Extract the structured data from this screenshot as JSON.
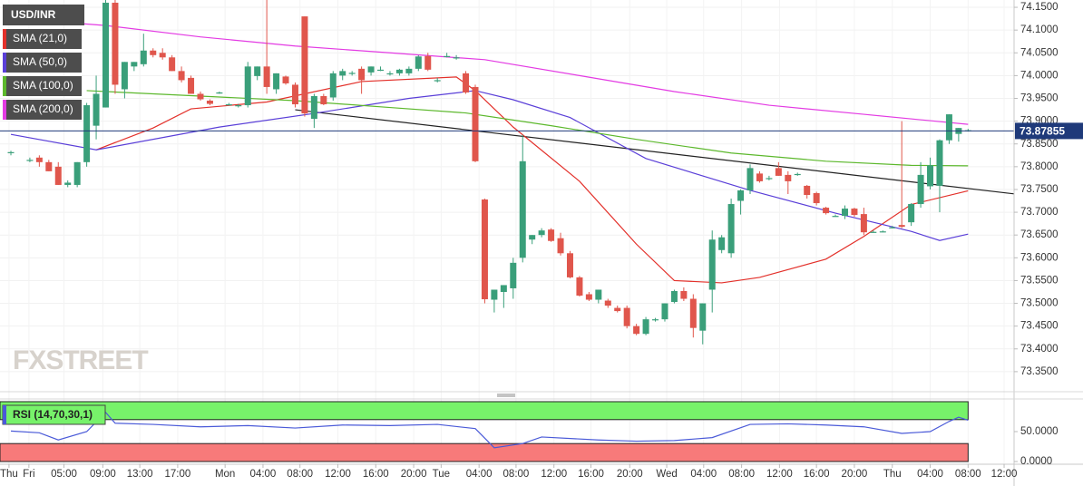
{
  "chart_data": {
    "type": "candlestick",
    "title": "USD/INR",
    "watermark": "FXSTREET",
    "up_color": "#3a9f7a",
    "down_color": "#e0564c",
    "grid": true,
    "xlim": [
      -1.15,
      105.85
    ],
    "ylim": [
      73.306,
      74.166
    ],
    "yticks": [
      {
        "value": 74.15,
        "label": "74.1500"
      },
      {
        "value": 74.1,
        "label": "74.1000"
      },
      {
        "value": 74.05,
        "label": "74.0500"
      },
      {
        "value": 74.0,
        "label": "74.0000"
      },
      {
        "value": 73.95,
        "label": "73.9500"
      },
      {
        "value": 73.9,
        "label": "73.9000"
      },
      {
        "value": 73.85,
        "label": "73.8500"
      },
      {
        "value": 73.8,
        "label": "73.8000"
      },
      {
        "value": 73.75,
        "label": "73.7500"
      },
      {
        "value": 73.7,
        "label": "73.7000"
      },
      {
        "value": 73.65,
        "label": "73.6500"
      },
      {
        "value": 73.6,
        "label": "73.6000"
      },
      {
        "value": 73.55,
        "label": "73.5500"
      },
      {
        "value": 73.5,
        "label": "73.5000"
      },
      {
        "value": 73.45,
        "label": "73.4500"
      },
      {
        "value": 73.4,
        "label": "73.4000"
      },
      {
        "value": 73.35,
        "label": "73.3500"
      }
    ],
    "xticks": [
      {
        "value": -0.2,
        "label": "Thu"
      },
      {
        "value": 1.9,
        "label": "Fri"
      },
      {
        "value": 5.6,
        "label": "05:00"
      },
      {
        "value": 9.7,
        "label": "09:00"
      },
      {
        "value": 13.6,
        "label": "13:00"
      },
      {
        "value": 17.6,
        "label": "17:00"
      },
      {
        "value": 22.6,
        "label": "Mon"
      },
      {
        "value": 26.6,
        "label": "04:00"
      },
      {
        "value": 30.5,
        "label": "08:00"
      },
      {
        "value": 34.5,
        "label": "12:00"
      },
      {
        "value": 38.5,
        "label": "16:00"
      },
      {
        "value": 42.5,
        "label": "20:00"
      },
      {
        "value": 45.4,
        "label": "Tue"
      },
      {
        "value": 49.4,
        "label": "04:00"
      },
      {
        "value": 53.3,
        "label": "08:00"
      },
      {
        "value": 57.3,
        "label": "12:00"
      },
      {
        "value": 61.2,
        "label": "16:00"
      },
      {
        "value": 65.3,
        "label": "20:00"
      },
      {
        "value": 69.2,
        "label": "Wed"
      },
      {
        "value": 73.1,
        "label": "04:00"
      },
      {
        "value": 77.1,
        "label": "08:00"
      },
      {
        "value": 81.1,
        "label": "12:00"
      },
      {
        "value": 85,
        "label": "16:00"
      },
      {
        "value": 89,
        "label": "20:00"
      },
      {
        "value": 93,
        "label": "Thu"
      },
      {
        "value": 97,
        "label": "04:00"
      },
      {
        "value": 101,
        "label": "08:00"
      },
      {
        "value": 104.8,
        "label": "12:00"
      }
    ],
    "price": 73.87855,
    "price_color": "#1f3a7a",
    "x": [
      0,
      2,
      3,
      4,
      5,
      6,
      7,
      8,
      9,
      10,
      11,
      12,
      13,
      14,
      15,
      16,
      17,
      18,
      19,
      20,
      21,
      22,
      23,
      24,
      25,
      26,
      27,
      28,
      29,
      30,
      31,
      32,
      33,
      34,
      35,
      36,
      37,
      38,
      39,
      40,
      41,
      42,
      43,
      44,
      45,
      46,
      47,
      48,
      49,
      50,
      51,
      52,
      53,
      54,
      55,
      56,
      57,
      58,
      59,
      60,
      61,
      62,
      63,
      64,
      65,
      66,
      67,
      68,
      69,
      70,
      71,
      72,
      73,
      74,
      75,
      76,
      77,
      78,
      79,
      80,
      81,
      82,
      83,
      84,
      85,
      86,
      87,
      88,
      89,
      90,
      91,
      92,
      93,
      94,
      95,
      96,
      97,
      98,
      99,
      100,
      101
    ],
    "ohlc": [
      [
        73.83,
        73.835,
        73.825,
        73.832
      ],
      [
        73.815,
        73.82,
        73.81,
        73.815
      ],
      [
        73.82,
        73.825,
        73.8,
        73.81
      ],
      [
        73.81,
        73.815,
        73.79,
        73.79
      ],
      [
        73.8,
        73.81,
        73.76,
        73.76
      ],
      [
        73.76,
        73.77,
        73.755,
        73.765
      ],
      [
        73.76,
        73.81,
        73.755,
        73.81
      ],
      [
        73.81,
        73.94,
        73.8,
        73.935
      ],
      [
        73.89,
        74.0,
        73.86,
        73.96
      ],
      [
        73.93,
        74.17,
        73.93,
        74.16
      ],
      [
        74.16,
        74.17,
        73.96,
        73.98
      ],
      [
        73.97,
        74.03,
        73.95,
        74.03
      ],
      [
        74.02,
        74.03,
        74.01,
        74.03
      ],
      [
        74.025,
        74.092,
        74.02,
        74.055
      ],
      [
        74.055,
        74.06,
        74.04,
        74.045
      ],
      [
        74.05,
        74.06,
        74.035,
        74.04
      ],
      [
        74.04,
        74.045,
        74.01,
        74.01
      ],
      [
        74.01,
        74.02,
        73.985,
        73.99
      ],
      [
        73.995,
        74.0,
        73.96,
        73.96
      ],
      [
        73.96,
        73.965,
        73.945,
        73.948
      ],
      [
        73.945,
        73.948,
        73.935,
        73.938
      ],
      [
        73.963,
        73.965,
        73.96,
        73.963
      ],
      [
        73.937,
        73.94,
        73.935,
        73.937
      ],
      [
        73.935,
        73.938,
        73.93,
        73.935
      ],
      [
        73.935,
        74.03,
        73.93,
        74.02
      ],
      [
        73.999,
        74.02,
        73.99,
        74.02
      ],
      [
        74.02,
        74.17,
        73.96,
        73.975
      ],
      [
        73.97,
        74.005,
        73.96,
        74.005
      ],
      [
        73.998,
        74.0,
        73.98,
        73.983
      ],
      [
        73.98,
        73.985,
        73.93,
        73.937
      ],
      [
        74.13,
        74.13,
        73.91,
        73.917
      ],
      [
        73.905,
        73.96,
        73.885,
        73.955
      ],
      [
        73.955,
        73.96,
        73.935,
        73.937
      ],
      [
        73.952,
        74.01,
        73.945,
        74.005
      ],
      [
        74.0,
        74.015,
        73.99,
        74.01
      ],
      [
        74.006,
        74.01,
        74.0,
        74.006
      ],
      [
        74.015,
        74.02,
        73.96,
        73.99
      ],
      [
        74.007,
        74.02,
        74.0,
        74.02
      ],
      [
        74.013,
        74.02,
        74.01,
        74.013
      ],
      [
        74.005,
        74.01,
        74.0,
        74.005
      ],
      [
        74.005,
        74.015,
        74.0,
        74.013
      ],
      [
        74.005,
        74.02,
        74.0,
        74.015
      ],
      [
        74.015,
        74.045,
        74.01,
        74.042
      ],
      [
        74.043,
        74.05,
        74.01,
        74.013
      ],
      [
        73.99,
        73.995,
        73.985,
        73.99
      ],
      [
        74.043,
        74.05,
        74.04,
        74.043
      ],
      [
        74.04,
        74.045,
        74.035,
        74.04
      ],
      [
        74.005,
        74.01,
        73.96,
        73.963
      ],
      [
        73.975,
        73.98,
        73.81,
        73.812
      ],
      [
        73.728,
        73.73,
        73.5,
        73.509
      ],
      [
        73.508,
        73.53,
        73.48,
        73.53
      ],
      [
        73.525,
        73.54,
        73.49,
        73.54
      ],
      [
        73.533,
        73.6,
        73.51,
        73.589
      ],
      [
        73.6,
        73.87,
        73.59,
        73.812
      ],
      [
        73.64,
        73.65,
        73.63,
        73.65
      ],
      [
        73.65,
        73.665,
        73.645,
        73.66
      ],
      [
        73.662,
        73.665,
        73.635,
        73.637
      ],
      [
        73.643,
        73.655,
        73.605,
        73.61
      ],
      [
        73.61,
        73.615,
        73.555,
        73.557
      ],
      [
        73.557,
        73.56,
        73.515,
        73.517
      ],
      [
        73.52,
        73.525,
        73.505,
        73.508
      ],
      [
        73.508,
        73.53,
        73.5,
        73.53
      ],
      [
        73.506,
        73.51,
        73.49,
        73.495
      ],
      [
        73.49,
        73.495,
        73.48,
        73.483
      ],
      [
        73.49,
        73.495,
        73.445,
        73.45
      ],
      [
        73.45,
        73.455,
        73.43,
        73.433
      ],
      [
        73.433,
        73.47,
        73.43,
        73.465
      ],
      [
        73.465,
        73.468,
        73.46,
        73.465
      ],
      [
        73.465,
        73.5,
        73.46,
        73.5
      ],
      [
        73.503,
        73.53,
        73.5,
        73.527
      ],
      [
        73.527,
        73.535,
        73.505,
        73.51
      ],
      [
        73.51,
        73.52,
        73.425,
        73.446
      ],
      [
        73.44,
        73.5,
        73.41,
        73.5
      ],
      [
        73.53,
        73.66,
        73.48,
        73.64
      ],
      [
        73.617,
        73.65,
        73.61,
        73.645
      ],
      [
        73.61,
        73.73,
        73.6,
        73.718
      ],
      [
        73.725,
        73.75,
        73.695,
        73.748
      ],
      [
        73.748,
        73.805,
        73.74,
        73.797
      ],
      [
        73.785,
        73.79,
        73.765,
        73.768
      ],
      [
        73.775,
        73.78,
        73.77,
        73.775
      ],
      [
        73.797,
        73.81,
        73.78,
        73.78
      ],
      [
        73.782,
        73.79,
        73.74,
        73.768
      ],
      [
        73.784,
        73.787,
        73.78,
        73.784
      ],
      [
        73.758,
        73.76,
        73.73,
        73.738
      ],
      [
        73.742,
        73.745,
        73.715,
        73.72
      ],
      [
        73.71,
        73.712,
        73.695,
        73.698
      ],
      [
        73.692,
        73.695,
        73.69,
        73.692
      ],
      [
        73.692,
        73.715,
        73.685,
        73.708
      ],
      [
        73.708,
        73.71,
        73.69,
        73.694
      ],
      [
        73.696,
        73.71,
        73.65,
        73.656
      ],
      [
        73.657,
        73.66,
        73.655,
        73.657
      ],
      [
        73.658,
        73.66,
        73.656,
        73.658
      ],
      [
        73.667,
        73.67,
        73.665,
        73.667
      ],
      [
        73.672,
        73.9,
        73.665,
        73.668
      ],
      [
        73.678,
        73.72,
        73.67,
        73.718
      ],
      [
        73.718,
        73.81,
        73.71,
        73.782
      ],
      [
        73.757,
        73.82,
        73.75,
        73.803
      ],
      [
        73.758,
        73.86,
        73.7,
        73.858
      ],
      [
        73.858,
        73.915,
        73.85,
        73.915
      ],
      [
        73.872,
        73.885,
        73.855,
        73.885
      ],
      [
        73.88,
        73.883,
        73.877,
        73.88
      ]
    ],
    "series": [
      {
        "name": "SMA (21,0)",
        "color": "#e3302a",
        "x": [
          9,
          15,
          19,
          27,
          37,
          47,
          49,
          53,
          60,
          66,
          70,
          75,
          79,
          86,
          90,
          95,
          101
        ],
        "values": [
          73.837,
          73.885,
          73.927,
          73.942,
          73.987,
          73.997,
          73.967,
          73.887,
          73.768,
          73.63,
          73.55,
          73.545,
          73.557,
          73.597,
          73.647,
          73.717,
          73.747
        ]
      },
      {
        "name": "SMA (50,0)",
        "color": "#5a3fd8",
        "x": [
          0,
          9,
          22,
          32,
          42,
          49,
          53,
          59,
          67,
          78,
          87,
          95,
          98,
          101
        ],
        "values": [
          73.871,
          73.837,
          73.887,
          73.917,
          73.95,
          73.967,
          73.947,
          73.908,
          73.818,
          73.748,
          73.698,
          73.658,
          73.638,
          73.652
        ]
      },
      {
        "name": "SMA (100,0)",
        "color": "#5cb82c",
        "x": [
          8,
          20,
          30,
          40,
          48,
          57,
          66,
          76,
          86,
          95,
          101
        ],
        "values": [
          73.967,
          73.955,
          73.945,
          73.93,
          73.918,
          73.89,
          73.86,
          73.83,
          73.812,
          73.803,
          73.802
        ]
      },
      {
        "name": "SMA (200,0)",
        "color": "#e33be3",
        "x": [
          0,
          10,
          20,
          30,
          40,
          50,
          60,
          70,
          80,
          90,
          101
        ],
        "values": [
          74.126,
          74.11,
          74.085,
          74.065,
          74.05,
          74.035,
          74.0,
          73.965,
          73.935,
          73.915,
          73.893
        ]
      }
    ],
    "trendline": {
      "color": "#222222",
      "x": [
        30,
        106
      ],
      "values": [
        73.925,
        73.74
      ]
    },
    "rsi": {
      "label": "RSI (14,70,30,1)",
      "color": "#4a5ad8",
      "upper": 70,
      "lower": 30,
      "upper_color": "#77f26a",
      "lower_color": "#f77a7a",
      "ylim": [
        0,
        100
      ],
      "yticks": [
        {
          "value": 50,
          "label": "50.0000"
        },
        {
          "value": 0,
          "label": "0.0000"
        }
      ],
      "x": [
        0,
        3,
        5,
        8,
        10,
        11,
        15,
        20,
        25,
        30,
        35,
        40,
        45,
        49,
        51,
        54,
        56,
        62,
        66,
        70,
        74,
        78,
        82,
        86,
        90,
        94,
        97,
        99,
        100,
        101
      ],
      "values": [
        51,
        48,
        36,
        50,
        82,
        64,
        62,
        58,
        60,
        56,
        61,
        60,
        62,
        55,
        23,
        30,
        41,
        36,
        34,
        35,
        40,
        62,
        63,
        61,
        58,
        47,
        50,
        67,
        74,
        69
      ]
    }
  }
}
